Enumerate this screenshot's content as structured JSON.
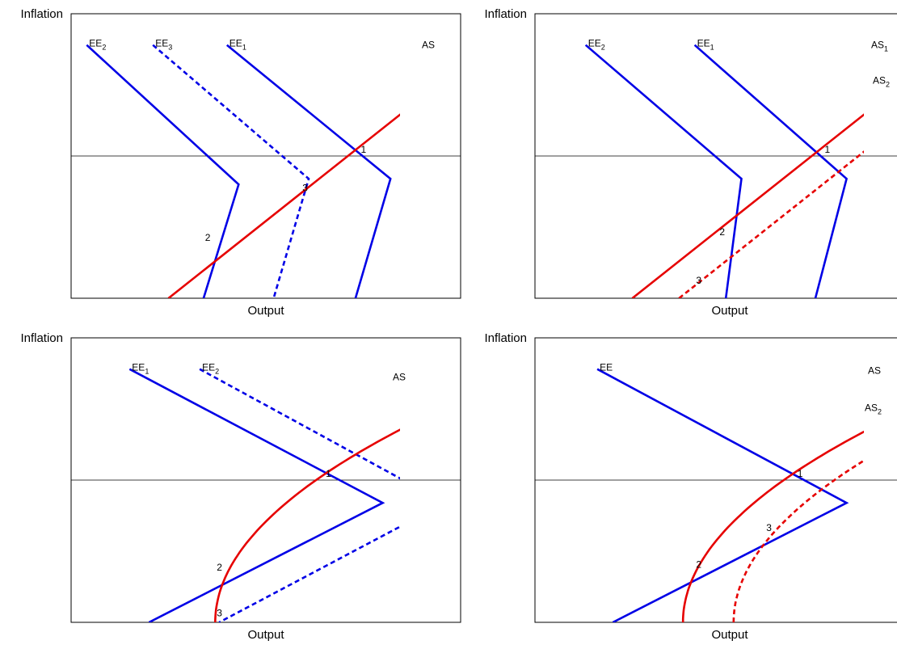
{
  "figure": {
    "colors": {
      "demand": "#0000e6",
      "supply": "#e60000",
      "axis": "#000000"
    }
  },
  "chart_data": [
    {
      "type": "line",
      "xlabel": "Output",
      "ylabel": "Inflation",
      "xlim": [
        0,
        100
      ],
      "ylim": [
        -100,
        100
      ],
      "zero_line": true,
      "series": [
        {
          "name": "EE",
          "sub": "2",
          "kind": "demand",
          "style": "solid",
          "points": [
            [
              4,
              78
            ],
            [
              43,
              -20
            ],
            [
              34,
              -100
            ]
          ]
        },
        {
          "name": "EE",
          "sub": "3",
          "kind": "demand",
          "style": "dashed",
          "points": [
            [
              21,
              78
            ],
            [
              61,
              -16
            ],
            [
              52,
              -100
            ]
          ]
        },
        {
          "name": "EE",
          "sub": "1",
          "kind": "demand",
          "style": "solid",
          "points": [
            [
              40,
              78
            ],
            [
              82,
              -16
            ],
            [
              73,
              -100
            ]
          ]
        },
        {
          "name": "AS",
          "sub": "",
          "kind": "supply",
          "style": "solid",
          "points": [
            [
              25,
              -100
            ],
            [
              107,
              78
            ]
          ]
        }
      ],
      "points": [
        {
          "label": "1",
          "x": 75,
          "y": 0
        },
        {
          "label": "3",
          "x": 60,
          "y": -27
        },
        {
          "label": "2",
          "x": 35,
          "y": -62
        }
      ]
    },
    {
      "type": "line",
      "xlabel": "Output",
      "ylabel": "Inflation",
      "xlim": [
        0,
        100
      ],
      "ylim": [
        -100,
        100
      ],
      "zero_line": true,
      "series": [
        {
          "name": "EE",
          "sub": "2",
          "kind": "demand",
          "style": "solid",
          "points": [
            [
              13,
              78
            ],
            [
              53,
              -16
            ],
            [
              49,
              -100
            ]
          ]
        },
        {
          "name": "EE",
          "sub": "1",
          "kind": "demand",
          "style": "solid",
          "points": [
            [
              41,
              78
            ],
            [
              80,
              -16
            ],
            [
              72,
              -100
            ]
          ]
        },
        {
          "name": "AS",
          "sub": "1",
          "kind": "supply",
          "style": "solid",
          "points": [
            [
              25,
              -100
            ],
            [
              107,
              78
            ]
          ]
        },
        {
          "name": "AS",
          "sub": "2",
          "kind": "supply",
          "style": "dashed",
          "points": [
            [
              37,
              -100
            ],
            [
              119,
              78
            ]
          ]
        }
      ],
      "points": [
        {
          "label": "1",
          "x": 75,
          "y": 0
        },
        {
          "label": "2",
          "x": 48,
          "y": -58
        },
        {
          "label": "3",
          "x": 42,
          "y": -92
        }
      ]
    },
    {
      "type": "line",
      "xlabel": "Output",
      "ylabel": "Inflation",
      "xlim": [
        0,
        100
      ],
      "ylim": [
        -100,
        100
      ],
      "zero_line": true,
      "series": [
        {
          "name": "EE",
          "sub": "1",
          "kind": "demand",
          "style": "solid",
          "points": [
            [
              15,
              78
            ],
            [
              80,
              -16
            ],
            [
              20,
              -100
            ]
          ]
        },
        {
          "name": "EE",
          "sub": "2",
          "kind": "demand",
          "style": "dashed",
          "points": [
            [
              33,
              78
            ],
            [
              96,
              -16
            ],
            [
              38,
              -100
            ]
          ]
        },
        {
          "name": "AS",
          "sub": "",
          "kind": "supply",
          "style": "solid",
          "curve": "sqrt",
          "vertex": [
            37,
            -100
          ],
          "end": [
            119,
            78
          ]
        }
      ],
      "points": [
        {
          "label": "1",
          "x": 66,
          "y": 0
        },
        {
          "label": "2",
          "x": 38,
          "y": -66
        },
        {
          "label": "3",
          "x": 38,
          "y": -98
        }
      ]
    },
    {
      "type": "line",
      "xlabel": "Output",
      "ylabel": "Inflation",
      "xlim": [
        0,
        100
      ],
      "ylim": [
        -100,
        100
      ],
      "zero_line": true,
      "series": [
        {
          "name": "EE",
          "sub": "",
          "kind": "demand",
          "style": "solid",
          "points": [
            [
              16,
              78
            ],
            [
              80,
              -16
            ],
            [
              20,
              -100
            ]
          ]
        },
        {
          "name": "AS",
          "sub": "",
          "kind": "supply",
          "style": "solid",
          "curve": "sqrt",
          "vertex": [
            38,
            -100
          ],
          "end": [
            120,
            78
          ]
        },
        {
          "name": "AS",
          "sub": "2",
          "kind": "supply",
          "style": "dashed",
          "curve": "sqrt",
          "vertex": [
            51,
            -100
          ],
          "end": [
            133,
            78
          ]
        }
      ],
      "points": [
        {
          "label": "1",
          "x": 68,
          "y": 0
        },
        {
          "label": "3",
          "x": 60,
          "y": -38
        },
        {
          "label": "2",
          "x": 42,
          "y": -64
        }
      ]
    }
  ]
}
